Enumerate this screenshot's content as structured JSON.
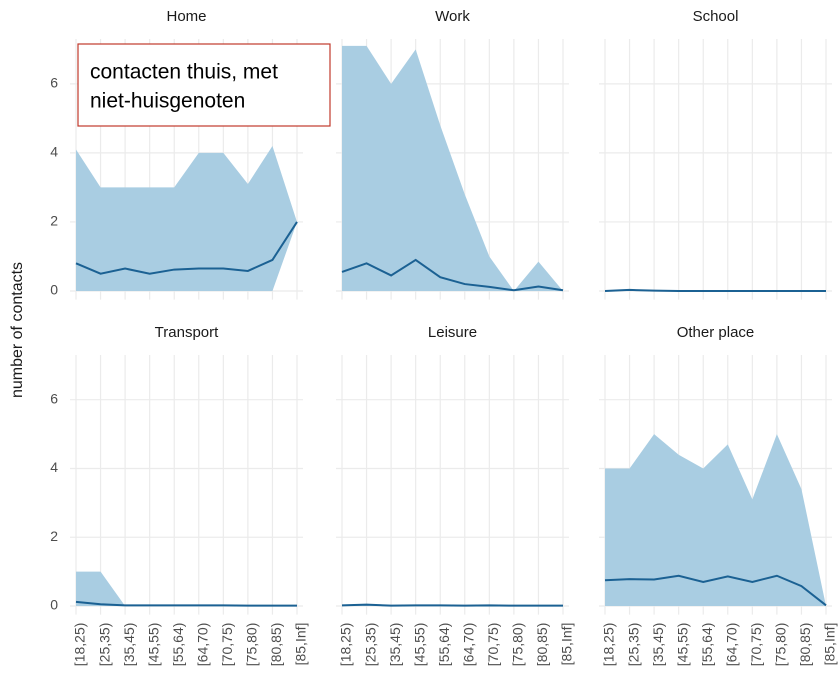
{
  "ylabel": "number of contacts",
  "categories": [
    "[18,25)",
    "[25,35)",
    "[35,45)",
    "[45,55)",
    "[55,64)",
    "[64,70)",
    "[70,75)",
    "[75,80)",
    "[80,85)",
    "[85,Inf]"
  ],
  "ylim": [
    -0.25,
    7.3
  ],
  "yticks": [
    0,
    2,
    4,
    6
  ],
  "grid": true,
  "annotation": [
    "contacten thuis, met",
    "niet-huisgenoten"
  ],
  "chart_data": [
    {
      "type": "line",
      "title": "Home",
      "color": "#1b6193",
      "band_color": "#a9cde2",
      "values": [
        0.8,
        0.5,
        0.65,
        0.5,
        0.62,
        0.65,
        0.65,
        0.58,
        0.9,
        2.0
      ],
      "lower": [
        0,
        0,
        0,
        0,
        0,
        0,
        0,
        0,
        0,
        2.0
      ],
      "upper": [
        4.1,
        3,
        3,
        3,
        3,
        4,
        4,
        3.1,
        4.2,
        2.0
      ]
    },
    {
      "type": "line",
      "title": "Work",
      "color": "#1b6193",
      "band_color": "#a9cde2",
      "values": [
        0.55,
        0.8,
        0.45,
        0.9,
        0.4,
        0.2,
        0.12,
        0.02,
        0.13,
        0.02
      ],
      "lower": [
        0,
        0,
        0,
        0,
        0,
        0,
        0,
        0,
        0,
        0
      ],
      "upper": [
        7.1,
        7.1,
        6,
        7,
        4.8,
        2.8,
        1,
        0,
        0.85,
        0
      ]
    },
    {
      "type": "line",
      "title": "School",
      "color": "#1b6193",
      "band_color": "#a9cde2",
      "values": [
        0,
        0.03,
        0.01,
        0,
        0,
        0,
        0,
        0,
        0,
        0
      ],
      "lower": [
        0,
        0,
        0,
        0,
        0,
        0,
        0,
        0,
        0,
        0
      ],
      "upper": [
        0,
        0.03,
        0.01,
        0,
        0,
        0,
        0,
        0,
        0,
        0
      ]
    },
    {
      "type": "line",
      "title": "Transport",
      "color": "#1b6193",
      "band_color": "#a9cde2",
      "values": [
        0.12,
        0.05,
        0.02,
        0.02,
        0.02,
        0.02,
        0.02,
        0.01,
        0.01,
        0.01
      ],
      "lower": [
        0,
        0,
        0,
        0,
        0,
        0,
        0,
        0,
        0,
        0
      ],
      "upper": [
        1,
        1,
        0,
        0,
        0,
        0,
        0,
        0,
        0,
        0
      ]
    },
    {
      "type": "line",
      "title": "Leisure",
      "color": "#1b6193",
      "band_color": "#a9cde2",
      "values": [
        0.02,
        0.04,
        0.01,
        0.02,
        0.02,
        0.01,
        0.02,
        0.01,
        0.01,
        0.01
      ],
      "lower": [
        0,
        0,
        0,
        0,
        0,
        0,
        0,
        0,
        0,
        0
      ],
      "upper": [
        0.02,
        0.04,
        0.01,
        0.02,
        0.02,
        0.01,
        0.02,
        0.01,
        0.01,
        0.01
      ]
    },
    {
      "type": "line",
      "title": "Other place",
      "color": "#1b6193",
      "band_color": "#a9cde2",
      "values": [
        0.75,
        0.78,
        0.77,
        0.88,
        0.7,
        0.86,
        0.7,
        0.88,
        0.58,
        0.02
      ],
      "lower": [
        0,
        0,
        0,
        0,
        0,
        0,
        0,
        0,
        0,
        0
      ],
      "upper": [
        4,
        4,
        5,
        4.4,
        4,
        4.7,
        3.1,
        5,
        3.4,
        0
      ]
    }
  ]
}
